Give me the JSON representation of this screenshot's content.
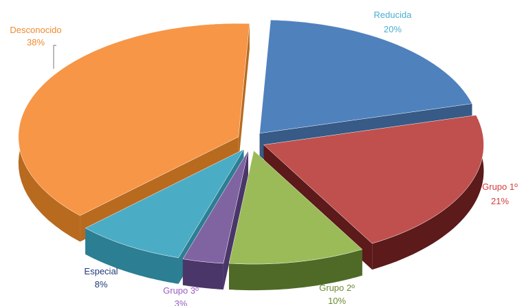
{
  "chart_data": {
    "type": "pie",
    "style": "3d-exploded",
    "slices": [
      {
        "label": "Reducida",
        "value": 20,
        "display": "20%",
        "color": "#4f81bd",
        "side": "#375a86",
        "label_color": "#4aaed0"
      },
      {
        "label": "Grupo 1º",
        "value": 21,
        "display": "21%",
        "color": "#c0504d",
        "side": "#5c1a1a",
        "label_color": "#d63c3a"
      },
      {
        "label": "Grupo 2º",
        "value": 10,
        "display": "10%",
        "color": "#9bbb59",
        "side": "#4f6a27",
        "label_color": "#6b8a30"
      },
      {
        "label": "Grupo 3º",
        "value": 3,
        "display": "3%",
        "color": "#8064a2",
        "side": "#4a3668",
        "label_color": "#9a5cc0"
      },
      {
        "label": "Especial",
        "value": 8,
        "display": "8%",
        "color": "#4bacc6",
        "side": "#2c7e93",
        "label_color": "#1f3a7a"
      },
      {
        "label": "Desconocido",
        "value": 38,
        "display": "38%",
        "color": "#f79646",
        "side": "#b86a1f",
        "label_color": "#f08a2c"
      }
    ],
    "legend": "none"
  }
}
